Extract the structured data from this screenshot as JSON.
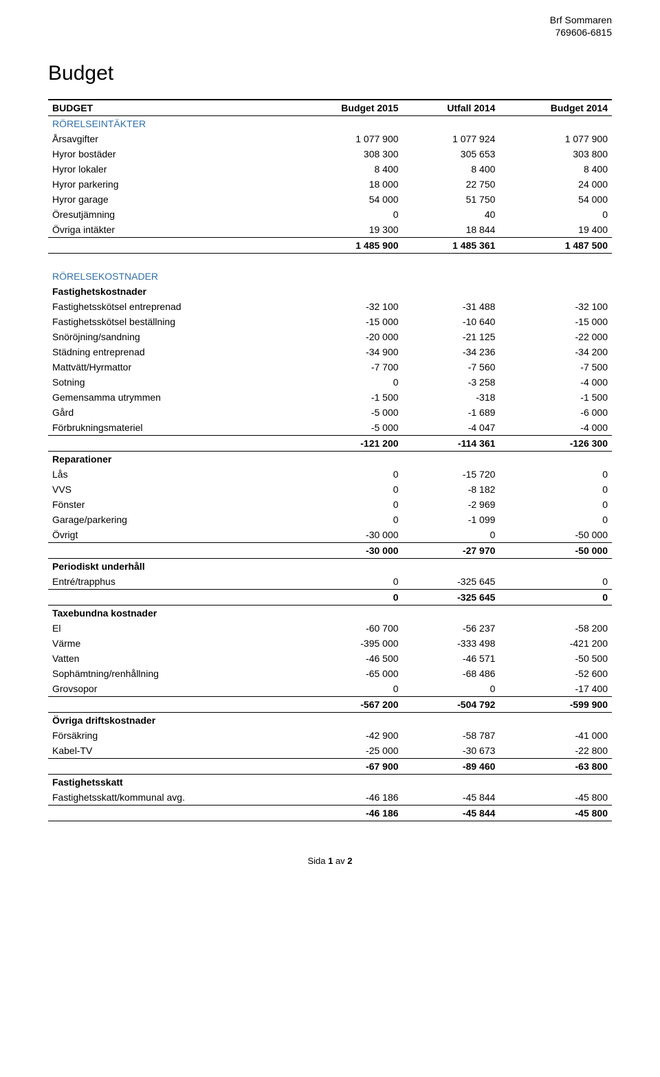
{
  "org": {
    "name": "Brf Sommaren",
    "id": "769606-6815"
  },
  "title": "Budget",
  "columns": [
    "BUDGET",
    "Budget 2015",
    "Utfall 2014",
    "Budget 2014"
  ],
  "footer": {
    "prefix": "Sida ",
    "page": "1",
    "mid": " av ",
    "total": "2"
  },
  "rows": [
    {
      "type": "section",
      "label": "RÖRELSEINTÄKTER"
    },
    {
      "type": "data",
      "label": "Årsavgifter",
      "v": [
        "1 077 900",
        "1 077 924",
        "1 077 900"
      ]
    },
    {
      "type": "data",
      "label": "Hyror bostäder",
      "v": [
        "308 300",
        "305 653",
        "303 800"
      ]
    },
    {
      "type": "data",
      "label": "Hyror lokaler",
      "v": [
        "8 400",
        "8 400",
        "8 400"
      ]
    },
    {
      "type": "data",
      "label": "Hyror parkering",
      "v": [
        "18 000",
        "22 750",
        "24 000"
      ]
    },
    {
      "type": "data",
      "label": "Hyror garage",
      "v": [
        "54 000",
        "51 750",
        "54 000"
      ]
    },
    {
      "type": "data",
      "label": "Öresutjämning",
      "v": [
        "0",
        "40",
        "0"
      ]
    },
    {
      "type": "data",
      "label": "Övriga intäkter",
      "v": [
        "19 300",
        "18 844",
        "19 400"
      ],
      "rule": true
    },
    {
      "type": "total",
      "label": "",
      "v": [
        "1 485 900",
        "1 485 361",
        "1 487 500"
      ],
      "rule": true
    },
    {
      "type": "spacer"
    },
    {
      "type": "section",
      "label": "RÖRELSEKOSTNADER"
    },
    {
      "type": "subheader",
      "label": "Fastighetskostnader"
    },
    {
      "type": "data",
      "label": "Fastighetsskötsel entreprenad",
      "v": [
        "-32 100",
        "-31 488",
        "-32 100"
      ]
    },
    {
      "type": "data",
      "label": "Fastighetsskötsel beställning",
      "v": [
        "-15 000",
        "-10 640",
        "-15 000"
      ]
    },
    {
      "type": "data",
      "label": "Snöröjning/sandning",
      "v": [
        "-20 000",
        "-21 125",
        "-22 000"
      ]
    },
    {
      "type": "data",
      "label": "Städning entreprenad",
      "v": [
        "-34 900",
        "-34 236",
        "-34 200"
      ]
    },
    {
      "type": "data",
      "label": "Mattvätt/Hyrmattor",
      "v": [
        "-7 700",
        "-7 560",
        "-7 500"
      ]
    },
    {
      "type": "data",
      "label": "Sotning",
      "v": [
        "0",
        "-3 258",
        "-4 000"
      ]
    },
    {
      "type": "data",
      "label": "Gemensamma utrymmen",
      "v": [
        "-1 500",
        "-318",
        "-1 500"
      ]
    },
    {
      "type": "data",
      "label": "Gård",
      "v": [
        "-5 000",
        "-1 689",
        "-6 000"
      ]
    },
    {
      "type": "data",
      "label": "Förbrukningsmateriel",
      "v": [
        "-5 000",
        "-4 047",
        "-4 000"
      ],
      "rule": true
    },
    {
      "type": "total",
      "label": "",
      "v": [
        "-121 200",
        "-114 361",
        "-126 300"
      ],
      "rule": true
    },
    {
      "type": "subheader",
      "label": "Reparationer"
    },
    {
      "type": "data",
      "label": "Lås",
      "v": [
        "0",
        "-15 720",
        "0"
      ]
    },
    {
      "type": "data",
      "label": "VVS",
      "v": [
        "0",
        "-8 182",
        "0"
      ]
    },
    {
      "type": "data",
      "label": "Fönster",
      "v": [
        "0",
        "-2 969",
        "0"
      ]
    },
    {
      "type": "data",
      "label": "Garage/parkering",
      "v": [
        "0",
        "-1 099",
        "0"
      ]
    },
    {
      "type": "data",
      "label": "Övrigt",
      "v": [
        "-30 000",
        "0",
        "-50 000"
      ],
      "rule": true
    },
    {
      "type": "total",
      "label": "",
      "v": [
        "-30 000",
        "-27 970",
        "-50 000"
      ],
      "rule": true
    },
    {
      "type": "subheader",
      "label": "Periodiskt underhåll"
    },
    {
      "type": "data",
      "label": "Entré/trapphus",
      "v": [
        "0",
        "-325 645",
        "0"
      ],
      "rule": true
    },
    {
      "type": "total",
      "label": "",
      "v": [
        "0",
        "-325 645",
        "0"
      ],
      "rule": true
    },
    {
      "type": "subheader",
      "label": "Taxebundna kostnader"
    },
    {
      "type": "data",
      "label": "El",
      "v": [
        "-60 700",
        "-56 237",
        "-58 200"
      ]
    },
    {
      "type": "data",
      "label": "Värme",
      "v": [
        "-395 000",
        "-333 498",
        "-421 200"
      ]
    },
    {
      "type": "data",
      "label": "Vatten",
      "v": [
        "-46 500",
        "-46 571",
        "-50 500"
      ]
    },
    {
      "type": "data",
      "label": "Sophämtning/renhållning",
      "v": [
        "-65 000",
        "-68 486",
        "-52 600"
      ]
    },
    {
      "type": "data",
      "label": "Grovsopor",
      "v": [
        "0",
        "0",
        "-17 400"
      ],
      "rule": true
    },
    {
      "type": "total",
      "label": "",
      "v": [
        "-567 200",
        "-504 792",
        "-599 900"
      ],
      "rule": true
    },
    {
      "type": "subheader",
      "label": "Övriga driftskostnader"
    },
    {
      "type": "data",
      "label": "Försäkring",
      "v": [
        "-42 900",
        "-58 787",
        "-41 000"
      ]
    },
    {
      "type": "data",
      "label": "Kabel-TV",
      "v": [
        "-25 000",
        "-30 673",
        "-22 800"
      ],
      "rule": true
    },
    {
      "type": "total",
      "label": "",
      "v": [
        "-67 900",
        "-89 460",
        "-63 800"
      ],
      "rule": true
    },
    {
      "type": "subheader",
      "label": "Fastighetsskatt"
    },
    {
      "type": "data",
      "label": "Fastighetsskatt/kommunal avg.",
      "v": [
        "-46 186",
        "-45 844",
        "-45 800"
      ],
      "rule": true
    },
    {
      "type": "total",
      "label": "",
      "v": [
        "-46 186",
        "-45 844",
        "-45 800"
      ],
      "rule": true
    }
  ]
}
